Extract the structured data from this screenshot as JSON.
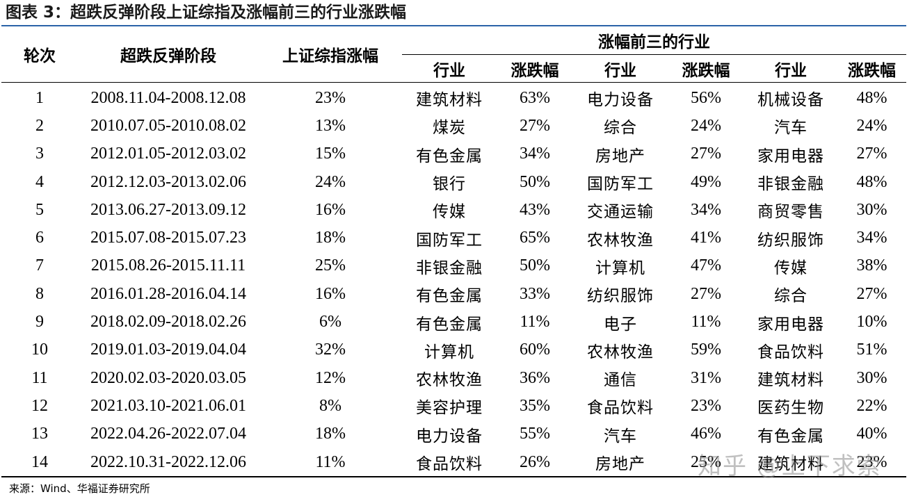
{
  "title": "图表 3：超跌反弹阶段上证综指及涨幅前三的行业涨跌幅",
  "headers": {
    "round": "轮次",
    "period": "超跌反弹阶段",
    "index_change": "上证综指涨幅",
    "top3_group": "涨幅前三的行业",
    "industry": "行业",
    "change": "涨跌幅"
  },
  "rows": [
    [
      "1",
      "2008.11.04-2008.12.08",
      "23%",
      "建筑材料",
      "63%",
      "电力设备",
      "56%",
      "机械设备",
      "48%"
    ],
    [
      "2",
      "2010.07.05-2010.08.02",
      "13%",
      "煤炭",
      "27%",
      "综合",
      "24%",
      "汽车",
      "24%"
    ],
    [
      "3",
      "2012.01.05-2012.03.02",
      "15%",
      "有色金属",
      "34%",
      "房地产",
      "27%",
      "家用电器",
      "27%"
    ],
    [
      "4",
      "2012.12.03-2013.02.06",
      "24%",
      "银行",
      "50%",
      "国防军工",
      "49%",
      "非银金融",
      "48%"
    ],
    [
      "5",
      "2013.06.27-2013.09.12",
      "16%",
      "传媒",
      "43%",
      "交通运输",
      "34%",
      "商贸零售",
      "30%"
    ],
    [
      "6",
      "2015.07.08-2015.07.23",
      "18%",
      "国防军工",
      "65%",
      "农林牧渔",
      "41%",
      "纺织服饰",
      "34%"
    ],
    [
      "7",
      "2015.08.26-2015.11.11",
      "25%",
      "非银金融",
      "50%",
      "计算机",
      "47%",
      "传媒",
      "38%"
    ],
    [
      "8",
      "2016.01.28-2016.04.14",
      "16%",
      "有色金属",
      "33%",
      "纺织服饰",
      "27%",
      "综合",
      "27%"
    ],
    [
      "9",
      "2018.02.09-2018.02.26",
      "6%",
      "有色金属",
      "11%",
      "电子",
      "11%",
      "家用电器",
      "10%"
    ],
    [
      "10",
      "2019.01.03-2019.04.04",
      "32%",
      "计算机",
      "60%",
      "农林牧渔",
      "59%",
      "食品饮料",
      "51%"
    ],
    [
      "11",
      "2020.02.03-2020.03.05",
      "12%",
      "农林牧渔",
      "36%",
      "通信",
      "31%",
      "建筑材料",
      "30%"
    ],
    [
      "12",
      "2021.03.10-2021.06.01",
      "8%",
      "美容护理",
      "35%",
      "食品饮料",
      "23%",
      "医药生物",
      "22%"
    ],
    [
      "13",
      "2022.04.26-2022.07.04",
      "18%",
      "电力设备",
      "55%",
      "汽车",
      "46%",
      "有色金属",
      "40%"
    ],
    [
      "14",
      "2022.10.31-2022.12.06",
      "11%",
      "食品饮料",
      "26%",
      "房地产",
      "25%",
      "建筑材料",
      "23%"
    ]
  ],
  "source": "来源：Wind、华福证券研究所",
  "watermark": "知乎 @上下求索",
  "colors": {
    "title_rule": "#2a62a8",
    "watermark": "#8c8c8c"
  }
}
